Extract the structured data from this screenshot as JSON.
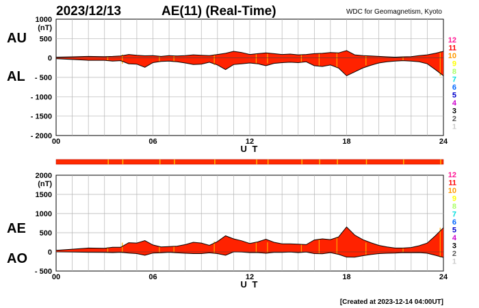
{
  "header": {
    "date": "2023/12/13",
    "title": "AE(11) (Real-Time)",
    "source": "WDC for Geomagnetism, Kyoto",
    "created": "[Created at 2023-12-14 04:00UT]"
  },
  "legend": {
    "numbers": [
      "12",
      "11",
      "10",
      "9",
      "8",
      "7",
      "6",
      "5",
      "4",
      "3",
      "2",
      "1"
    ],
    "colors": [
      "#ff1493",
      "#ff0000",
      "#ff9900",
      "#ffff00",
      "#aaff66",
      "#00dddd",
      "#0066ff",
      "#0000cc",
      "#cc00cc",
      "#000000",
      "#555555",
      "#cccccc"
    ]
  },
  "chart_data": [
    {
      "type": "area",
      "name": "AU-AL panel",
      "series_labels": [
        "AU",
        "AL"
      ],
      "y_unit": "(nT)",
      "ylim": [
        -2000,
        1000
      ],
      "y_ticks": [
        1000,
        500,
        0,
        -500,
        -1000,
        -1500,
        -2000
      ],
      "y_tick_labels": [
        "1000",
        "500",
        "0",
        "- 500",
        "- 1000",
        "- 1500",
        "- 2000"
      ],
      "xlim": [
        0,
        24
      ],
      "x_ticks": [
        0,
        6,
        12,
        18,
        24
      ],
      "x_tick_labels": [
        "00",
        "06",
        "12",
        "18",
        "24"
      ],
      "xlabel": "U T",
      "fill_color": "#ff2200",
      "series": [
        {
          "name": "AU",
          "x": [
            0,
            1,
            2,
            3,
            3.5,
            4,
            4.5,
            5,
            5.5,
            6,
            6.5,
            7,
            7.5,
            8,
            8.5,
            9,
            9.5,
            10,
            10.5,
            11,
            11.5,
            12,
            12.5,
            13,
            13.5,
            14,
            14.5,
            15,
            15.5,
            16,
            16.5,
            17,
            17.5,
            18,
            18.5,
            19,
            19.5,
            20,
            20.5,
            21,
            21.5,
            22,
            22.5,
            23,
            23.5,
            24
          ],
          "values": [
            20,
            30,
            40,
            35,
            40,
            50,
            90,
            70,
            55,
            60,
            40,
            60,
            50,
            60,
            80,
            70,
            60,
            90,
            120,
            170,
            140,
            90,
            110,
            130,
            110,
            90,
            100,
            80,
            90,
            110,
            120,
            140,
            130,
            190,
            80,
            60,
            50,
            40,
            30,
            20,
            30,
            35,
            60,
            80,
            120,
            170
          ]
        },
        {
          "name": "AL",
          "x": [
            0,
            1,
            2,
            3,
            3.5,
            4,
            4.5,
            5,
            5.5,
            6,
            6.5,
            7,
            7.5,
            8,
            8.5,
            9,
            9.5,
            10,
            10.5,
            11,
            11.5,
            12,
            12.5,
            13,
            13.5,
            14,
            14.5,
            15,
            15.5,
            16,
            16.5,
            17,
            17.5,
            18,
            18.5,
            19,
            19.5,
            20,
            20.5,
            21,
            21.5,
            22,
            22.5,
            23,
            23.5,
            24
          ],
          "values": [
            -20,
            -40,
            -60,
            -60,
            -80,
            -70,
            -150,
            -160,
            -240,
            -120,
            -90,
            -80,
            -100,
            -130,
            -170,
            -160,
            -110,
            -180,
            -300,
            -170,
            -150,
            -130,
            -150,
            -200,
            -140,
            -120,
            -110,
            -120,
            -100,
            -200,
            -220,
            -180,
            -260,
            -460,
            -360,
            -260,
            -190,
            -130,
            -100,
            -80,
            -70,
            -80,
            -100,
            -150,
            -300,
            -460
          ]
        }
      ]
    },
    {
      "type": "area",
      "name": "AE-AO panel",
      "series_labels": [
        "AE",
        "AO"
      ],
      "y_unit": "(nT)",
      "ylim": [
        -500,
        2000
      ],
      "y_ticks": [
        2000,
        1500,
        1000,
        500,
        0,
        -500
      ],
      "y_tick_labels": [
        "2000",
        "1500",
        "1000",
        "500",
        "0",
        "- 500"
      ],
      "xlim": [
        0,
        24
      ],
      "x_ticks": [
        0,
        6,
        12,
        18,
        24
      ],
      "x_tick_labels": [
        "00",
        "06",
        "12",
        "18",
        "24"
      ],
      "xlabel": "U T",
      "fill_color": "#ff2200",
      "series": [
        {
          "name": "AE",
          "x": [
            0,
            1,
            2,
            3,
            3.5,
            4,
            4.5,
            5,
            5.5,
            6,
            6.5,
            7,
            7.5,
            8,
            8.5,
            9,
            9.5,
            10,
            10.5,
            11,
            11.5,
            12,
            12.5,
            13,
            13.5,
            14,
            14.5,
            15,
            15.5,
            16,
            16.5,
            17,
            17.5,
            18,
            18.5,
            19,
            19.5,
            20,
            20.5,
            21,
            21.5,
            22,
            22.5,
            23,
            23.5,
            24
          ],
          "values": [
            40,
            70,
            100,
            95,
            120,
            120,
            240,
            230,
            295,
            180,
            130,
            140,
            150,
            190,
            250,
            230,
            170,
            270,
            420,
            340,
            290,
            220,
            260,
            330,
            250,
            210,
            210,
            200,
            190,
            310,
            340,
            320,
            390,
            650,
            440,
            320,
            240,
            170,
            130,
            100,
            100,
            115,
            160,
            230,
            420,
            630
          ]
        },
        {
          "name": "AO",
          "x": [
            0,
            1,
            2,
            3,
            3.5,
            4,
            4.5,
            5,
            5.5,
            6,
            6.5,
            7,
            7.5,
            8,
            8.5,
            9,
            9.5,
            10,
            10.5,
            11,
            11.5,
            12,
            12.5,
            13,
            13.5,
            14,
            14.5,
            15,
            15.5,
            16,
            16.5,
            17,
            17.5,
            18,
            18.5,
            19,
            19.5,
            20,
            20.5,
            21,
            21.5,
            22,
            22.5,
            23,
            23.5,
            24
          ],
          "values": [
            0,
            -5,
            -10,
            -12,
            -20,
            -10,
            -30,
            -45,
            -90,
            -30,
            -25,
            -10,
            -25,
            -35,
            -45,
            -45,
            -25,
            -45,
            -90,
            0,
            -5,
            -20,
            -20,
            -35,
            -15,
            -15,
            -5,
            -20,
            -5,
            -45,
            -50,
            -20,
            -65,
            -135,
            -140,
            -100,
            -70,
            -45,
            -35,
            -30,
            -20,
            -23,
            -20,
            -35,
            -90,
            -145
          ]
        }
      ]
    }
  ]
}
